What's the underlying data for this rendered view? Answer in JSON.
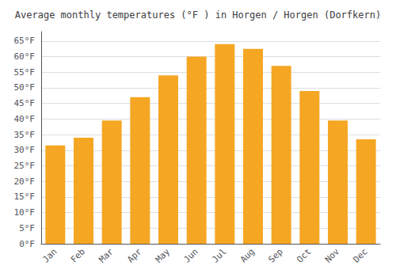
{
  "chart_data": {
    "type": "bar",
    "title": "Average monthly temperatures (°F ) in Horgen / Horgen (Dorfkern)",
    "categories": [
      "Jan",
      "Feb",
      "Mar",
      "Apr",
      "May",
      "Jun",
      "Jul",
      "Aug",
      "Sep",
      "Oct",
      "Nov",
      "Dec"
    ],
    "values": [
      31.5,
      34.0,
      39.5,
      47.0,
      54.0,
      60.0,
      64.0,
      62.5,
      57.0,
      49.0,
      39.5,
      33.5
    ],
    "color": "#F5A623",
    "ylim": [
      0,
      68
    ],
    "yticks": [
      {
        "value": 0,
        "label": "0°F"
      },
      {
        "value": 5,
        "label": "5°F"
      },
      {
        "value": 10,
        "label": "10°F"
      },
      {
        "value": 15,
        "label": "15°F"
      },
      {
        "value": 20,
        "label": "20°F"
      },
      {
        "value": 25,
        "label": "25°F"
      },
      {
        "value": 30,
        "label": "30°F"
      },
      {
        "value": 35,
        "label": "35°F"
      },
      {
        "value": 40,
        "label": "40°F"
      },
      {
        "value": 45,
        "label": "45°F"
      },
      {
        "value": 50,
        "label": "50°F"
      },
      {
        "value": 55,
        "label": "55°F"
      },
      {
        "value": 60,
        "label": "60°F"
      },
      {
        "value": 65,
        "label": "65°F"
      }
    ],
    "grid": true
  }
}
